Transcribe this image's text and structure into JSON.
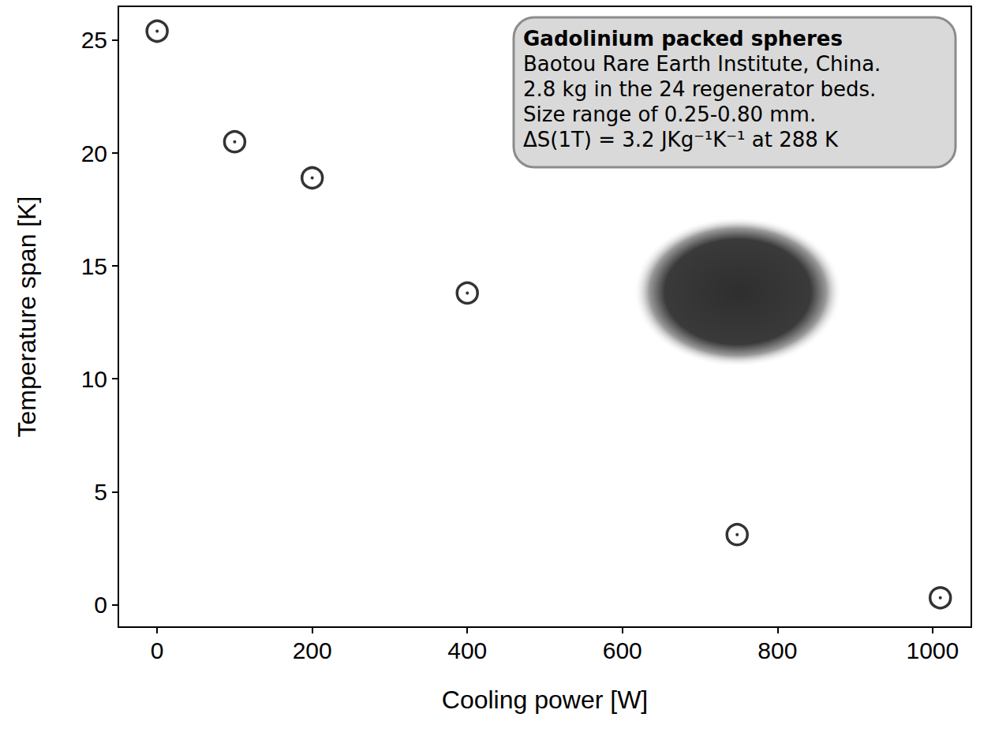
{
  "chart_data": {
    "type": "scatter",
    "x": [
      0,
      100,
      200,
      400,
      748,
      1010
    ],
    "values": [
      25.4,
      20.5,
      18.9,
      13.8,
      3.1,
      0.3
    ],
    "xlabel": "Cooling power [W]",
    "ylabel": "Temperature span [K]",
    "xlim": [
      -50,
      1050
    ],
    "xticks": [
      0,
      200,
      400,
      600,
      800,
      1000
    ],
    "ylim": [
      -1,
      26.5
    ],
    "yticks": [
      0,
      5,
      10,
      15,
      20,
      25
    ],
    "grid": false,
    "color": "#000000",
    "marker": "circle_dot",
    "annotation": {
      "title": "Gadolinium packed spheres",
      "lines": [
        "Baotou Rare Earth Institute, China.",
        "2.8 kg in the 24 regenerator beds.",
        "Size range of 0.25-0.80 mm.",
        "ΔS(1T) = 3.2 JKg⁻¹K⁻¹ at 288 K"
      ]
    }
  }
}
